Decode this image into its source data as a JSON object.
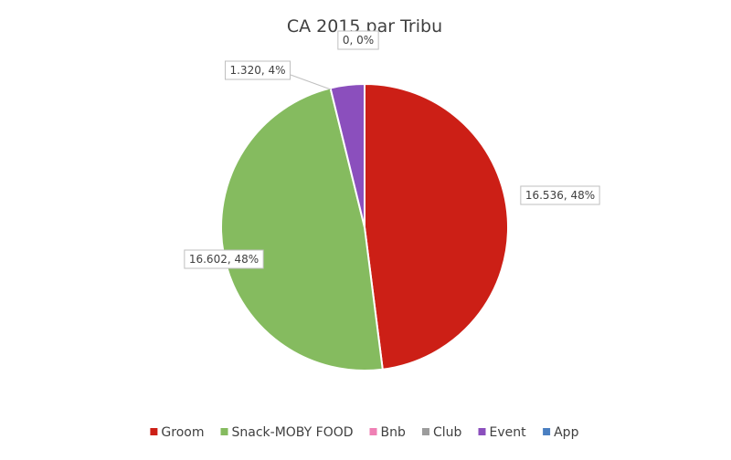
{
  "chart_data": {
    "type": "pie",
    "title": "CA 2015 par Tribu",
    "legend_position": "bottom",
    "categories": [
      "Groom",
      "Snack-MOBY FOOD",
      "Bnb",
      "Club",
      "Event",
      "App"
    ],
    "values": [
      16.536,
      16.602,
      0,
      0,
      1.32,
      0
    ],
    "colors": [
      "#cc1f16",
      "#85bb5f",
      "#ef80b4",
      "#9c9c9c",
      "#8b4fbd",
      "#4a7fc1"
    ],
    "data_labels": [
      {
        "category": "Groom",
        "text": "16.536, 48%"
      },
      {
        "category": "Snack-MOBY FOOD",
        "text": "16.602, 48%"
      },
      {
        "category": "Event",
        "text": "1.320, 4%"
      },
      {
        "category": "App",
        "text": "0, 0%"
      }
    ]
  }
}
